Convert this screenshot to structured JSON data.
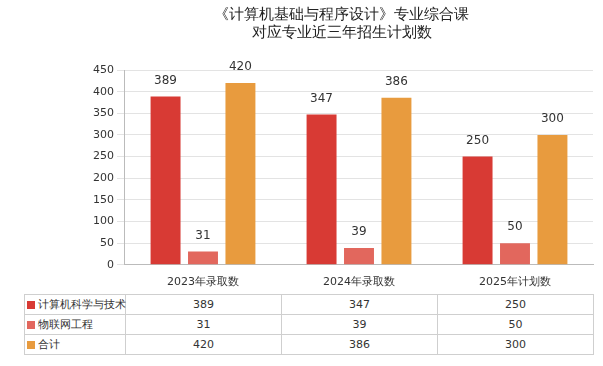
{
  "chart_data": {
    "type": "bar",
    "title": [
      "《计算机基础与程序设计》专业综合课",
      "对应专业近三年招生计划数"
    ],
    "categories": [
      "2023年录取数",
      "2024年录取数",
      "2025年计划数"
    ],
    "series": [
      {
        "name": "计算机科学与技术",
        "color": "#d83a34",
        "values": [
          389,
          347,
          250
        ]
      },
      {
        "name": "物联网工程",
        "color": "#e2675d",
        "values": [
          31,
          39,
          50
        ]
      },
      {
        "name": "合计",
        "color": "#e89b3e",
        "values": [
          420,
          386,
          300
        ]
      }
    ],
    "ylim": [
      0,
      450
    ],
    "yticks": [
      0,
      50,
      100,
      150,
      200,
      250,
      300,
      350,
      400,
      450
    ],
    "grid": true,
    "data_labels": true
  }
}
